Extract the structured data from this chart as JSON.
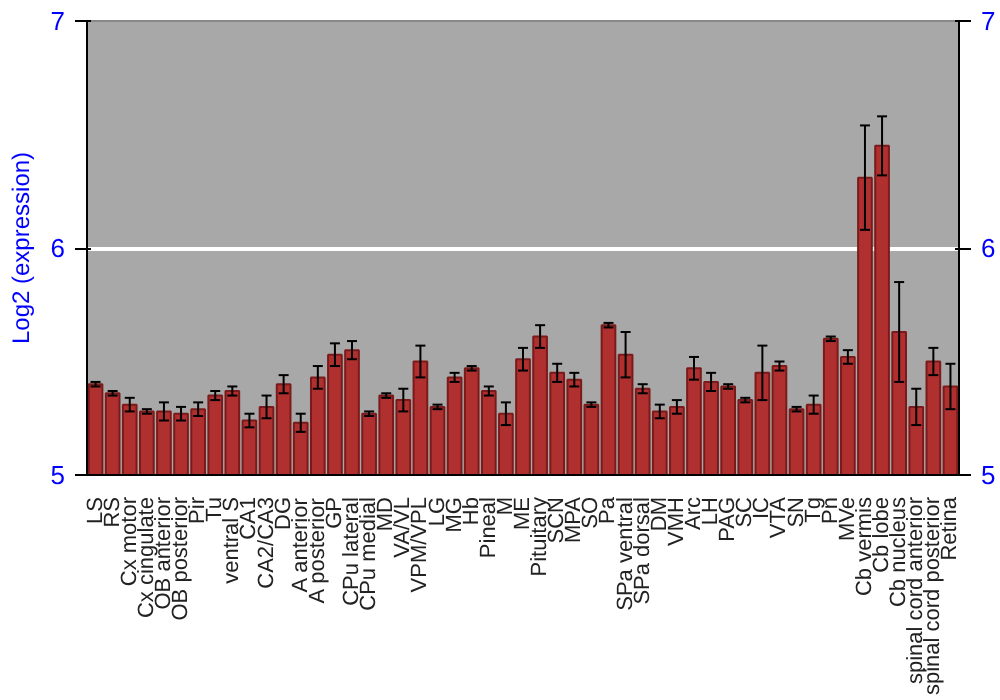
{
  "chart_data": {
    "type": "bar",
    "ylabel": "Log2 (expression)",
    "categories": [
      "LS",
      "RS",
      "Cx motor",
      "Cx cingulate",
      "OB anterior",
      "OB posterior",
      "Pir",
      "Tu",
      "ventral S",
      "CA1",
      "CA2/CA3",
      "DG",
      "A anterior",
      "A posterior",
      "GP",
      "CPu lateral",
      "CPu medial",
      "MD",
      "VA/VL",
      "VPM/VPL",
      "LG",
      "MG",
      "Hb",
      "Pineal",
      "M",
      "ME",
      "Pituitary",
      "SCN",
      "MPA",
      "SO",
      "Pa",
      "SPa ventral",
      "SPa dorsal",
      "DM",
      "VMH",
      "Arc",
      "LH",
      "PAG",
      "SC",
      "IC",
      "VTA",
      "SN",
      "Tg",
      "Pn",
      "MVe",
      "Cb vermis",
      "Cb lobe",
      "Cb nucleus",
      "spinal cord anterior",
      "spinal cord posterior",
      "Retina"
    ],
    "values": [
      5.4,
      5.36,
      5.31,
      5.28,
      5.28,
      5.27,
      5.29,
      5.35,
      5.37,
      5.24,
      5.3,
      5.4,
      5.23,
      5.43,
      5.53,
      5.55,
      5.27,
      5.35,
      5.33,
      5.5,
      5.3,
      5.43,
      5.47,
      5.37,
      5.27,
      5.51,
      5.61,
      5.45,
      5.42,
      5.31,
      5.66,
      5.53,
      5.38,
      5.28,
      5.3,
      5.47,
      5.41,
      5.39,
      5.33,
      5.45,
      5.48,
      5.29,
      5.31,
      5.6,
      5.52,
      6.31,
      6.45,
      5.63,
      5.3,
      5.5,
      5.39
    ],
    "errors": [
      0.01,
      0.01,
      0.03,
      0.01,
      0.04,
      0.03,
      0.03,
      0.02,
      0.02,
      0.03,
      0.05,
      0.04,
      0.04,
      0.05,
      0.05,
      0.04,
      0.01,
      0.01,
      0.05,
      0.07,
      0.01,
      0.02,
      0.01,
      0.02,
      0.05,
      0.05,
      0.05,
      0.04,
      0.03,
      0.01,
      0.01,
      0.1,
      0.02,
      0.03,
      0.03,
      0.05,
      0.04,
      0.01,
      0.01,
      0.12,
      0.02,
      0.01,
      0.04,
      0.01,
      0.03,
      0.23,
      0.13,
      0.22,
      0.08,
      0.06,
      0.1
    ],
    "color": "#b03030",
    "ylim": [
      5,
      7
    ],
    "yticks": [
      5,
      6,
      7
    ],
    "y2lim": [
      5,
      7
    ],
    "y2ticks": [
      5,
      6,
      7
    ],
    "grid": "y"
  }
}
